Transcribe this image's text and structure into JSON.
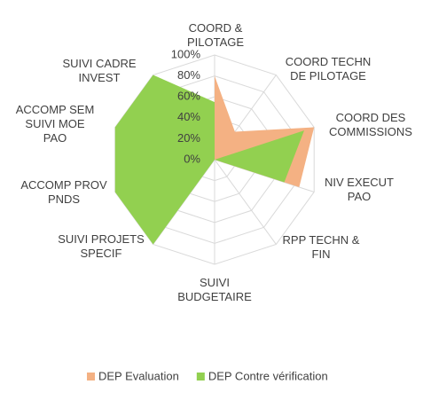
{
  "chart_data": {
    "type": "radar",
    "categories": [
      "COORD & PILOTAGE",
      "COORD TECHN DE PILOTAGE",
      "COORD DES COMMISSIONS",
      "NIV EXECUT PAO",
      "RPP TECHN & FIN",
      "SUIVI BUDGETAIRE",
      "SUIVI PROJETS SPECIF",
      "ACCOMP PROV PNDS",
      "ACCOMP SEM SUIVI MOE PAO",
      "SUIVI CADRE INVEST"
    ],
    "series": [
      {
        "name": "DEP Evaluation",
        "color": "#f4b183",
        "values": [
          80,
          33,
          100,
          85,
          0,
          0,
          100,
          0,
          0,
          0
        ]
      },
      {
        "name": "DEP Contre vérification",
        "color": "#92d050",
        "values": [
          55,
          0,
          90,
          70,
          0,
          0,
          100,
          100,
          100,
          100
        ]
      }
    ],
    "ylim": [
      0,
      100
    ],
    "yticks": [
      {
        "value": 0,
        "label": "0%"
      },
      {
        "value": 20,
        "label": "20%"
      },
      {
        "value": 40,
        "label": "40%"
      },
      {
        "value": 60,
        "label": "60%"
      },
      {
        "value": 80,
        "label": "80%"
      },
      {
        "value": 100,
        "label": "100%"
      }
    ],
    "grid": true,
    "legend": "bottom"
  }
}
